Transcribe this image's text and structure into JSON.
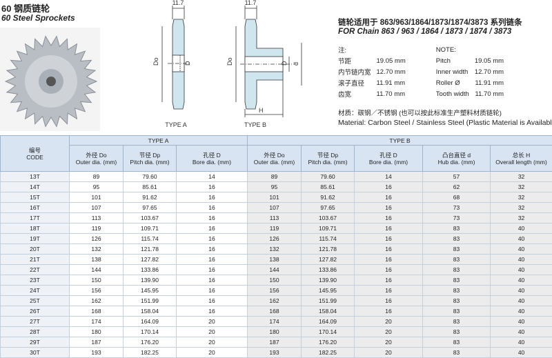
{
  "header": {
    "title": "60 钢质链轮",
    "subtitle": "60 Steel Sprockets"
  },
  "diagram_a": {
    "width": "11.7",
    "do": "Do",
    "d": "D",
    "caption": "TYPE A"
  },
  "diagram_b": {
    "width": "11.7",
    "do": "Do",
    "d": "D",
    "hub": "d",
    "length": "H",
    "caption": "TYPE B"
  },
  "info": {
    "chain_cn": "链轮适用于 863/963/1864/1873/1874/3873 系列链条",
    "chain_en": "FOR Chain 863 / 963 / 1864 / 1873 / 1874 / 3873",
    "note_cn": "注:",
    "note_en": "NOTE:",
    "notes": [
      [
        "节距",
        "19.05 mm",
        "Pitch",
        "19.05 mm"
      ],
      [
        "内节链内宽",
        "12.70 mm",
        "Inner width",
        "12.70 mm"
      ],
      [
        "滚子直径",
        "11.91 mm",
        "Roller Ø",
        "11.91 mm"
      ],
      [
        "齿宽",
        "11.70 mm",
        "Tooth width",
        "11.70 mm"
      ]
    ],
    "material_cn": "材质：碳钢／不锈钢 (也可以按此标准生产塑料材质链轮)",
    "material_en": "Material: Carbon Steel / Stainless Steel (Plastic Material is Available)"
  },
  "table": {
    "code_cn": "编号",
    "code_en": "CODE",
    "group_a": "TYPE A",
    "group_b": "TYPE B",
    "columns": [
      [
        "外径 Do",
        "Outer dia. (mm)"
      ],
      [
        "节径 Dp",
        "Pitch dia. (mm)"
      ],
      [
        "孔径 D",
        "Bore dia. (mm)"
      ],
      [
        "外径 Do",
        "Outer dia. (mm)"
      ],
      [
        "节径 Dp",
        "Pitch dia. (mm)"
      ],
      [
        "孔径 D",
        "Bore dia. (mm)"
      ],
      [
        "凸台直径 d",
        "Hub dia. (mm)"
      ],
      [
        "总长 H",
        "Overall length (mm)"
      ]
    ],
    "rows": [
      [
        "13T",
        "89",
        "79.60",
        "14",
        "89",
        "79.60",
        "14",
        "57",
        "32"
      ],
      [
        "14T",
        "95",
        "85.61",
        "16",
        "95",
        "85.61",
        "16",
        "62",
        "32"
      ],
      [
        "15T",
        "101",
        "91.62",
        "16",
        "101",
        "91.62",
        "16",
        "68",
        "32"
      ],
      [
        "16T",
        "107",
        "97.65",
        "16",
        "107",
        "97.65",
        "16",
        "73",
        "32"
      ],
      [
        "17T",
        "113",
        "103.67",
        "16",
        "113",
        "103.67",
        "16",
        "73",
        "32"
      ],
      [
        "18T",
        "119",
        "109.71",
        "16",
        "119",
        "109.71",
        "16",
        "83",
        "40"
      ],
      [
        "19T",
        "126",
        "115.74",
        "16",
        "126",
        "115.74",
        "16",
        "83",
        "40"
      ],
      [
        "20T",
        "132",
        "121.78",
        "16",
        "132",
        "121.78",
        "16",
        "83",
        "40"
      ],
      [
        "21T",
        "138",
        "127.82",
        "16",
        "138",
        "127.82",
        "16",
        "83",
        "40"
      ],
      [
        "22T",
        "144",
        "133.86",
        "16",
        "144",
        "133.86",
        "16",
        "83",
        "40"
      ],
      [
        "23T",
        "150",
        "139.90",
        "16",
        "150",
        "139.90",
        "16",
        "83",
        "40"
      ],
      [
        "24T",
        "156",
        "145.95",
        "16",
        "156",
        "145.95",
        "16",
        "83",
        "40"
      ],
      [
        "25T",
        "162",
        "151.99",
        "16",
        "162",
        "151.99",
        "16",
        "83",
        "40"
      ],
      [
        "26T",
        "168",
        "158.04",
        "16",
        "168",
        "158.04",
        "16",
        "83",
        "40"
      ],
      [
        "27T",
        "174",
        "164.09",
        "20",
        "174",
        "164.09",
        "20",
        "83",
        "40"
      ],
      [
        "28T",
        "180",
        "170.14",
        "20",
        "180",
        "170.14",
        "20",
        "83",
        "40"
      ],
      [
        "29T",
        "187",
        "176.20",
        "20",
        "187",
        "176.20",
        "20",
        "83",
        "40"
      ],
      [
        "30T",
        "193",
        "182.25",
        "20",
        "193",
        "182.25",
        "20",
        "83",
        "40"
      ]
    ]
  }
}
